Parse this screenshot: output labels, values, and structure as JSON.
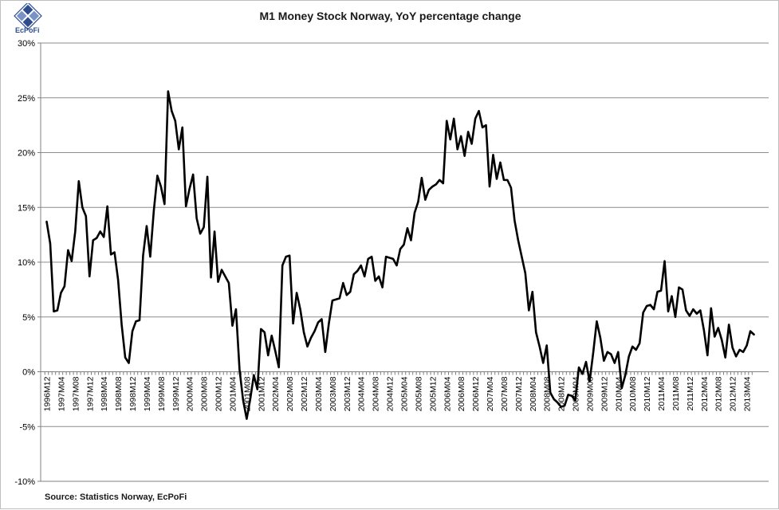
{
  "logo": {
    "name": "EcPoFi"
  },
  "chart_data": {
    "type": "line",
    "title": "M1 Money Stock Norway, YoY percentage change",
    "source": "Source: Statistics Norway, EcPoFi",
    "xlabel": "",
    "ylabel": "",
    "ylim": [
      -10,
      30
    ],
    "yticks": [
      30,
      25,
      20,
      15,
      10,
      5,
      0,
      -5,
      -10
    ],
    "ytick_labels": [
      "30%",
      "25%",
      "20%",
      "15%",
      "10%",
      "5%",
      "0%",
      "-5%",
      "-10%"
    ],
    "grid": true,
    "x_start": "1996M12",
    "xtick_labels": [
      "1996M12",
      "1997M04",
      "1997M08",
      "1997M12",
      "1998M04",
      "1998M08",
      "1998M12",
      "1999M04",
      "1999M08",
      "1999M12",
      "2000M04",
      "2000M08",
      "2000M12",
      "2001M04",
      "2001M08",
      "2001M12",
      "2002M04",
      "2002M08",
      "2002M12",
      "2003M04",
      "2003M08",
      "2003M12",
      "2004M04",
      "2004M08",
      "2004M12",
      "2005M04",
      "2005M08",
      "2005M12",
      "2006M04",
      "2006M08",
      "2006M12",
      "2007M04",
      "2007M08",
      "2007M12",
      "2008M04",
      "2008M08",
      "2008M12",
      "2009M04",
      "2009M08",
      "2009M12",
      "2010M04",
      "2010M08",
      "2010M12",
      "2011M04",
      "2011M08",
      "2011M12",
      "2012M04",
      "2012M08",
      "2012M12",
      "2013M04"
    ],
    "series": [
      {
        "name": "M1 YoY %",
        "color": "#000000",
        "values": [
          13.7,
          11.7,
          5.5,
          5.6,
          7.2,
          7.8,
          11.1,
          10.1,
          12.8,
          17.4,
          15.0,
          14.2,
          8.7,
          12.0,
          12.2,
          12.8,
          12.3,
          15.1,
          10.7,
          10.9,
          8.4,
          4.3,
          1.3,
          0.8,
          3.7,
          4.6,
          4.7,
          10.6,
          13.3,
          10.5,
          14.7,
          17.9,
          16.9,
          15.3,
          25.6,
          23.8,
          22.9,
          20.3,
          22.3,
          15.1,
          16.7,
          18.0,
          14.0,
          12.6,
          13.2,
          17.8,
          8.6,
          12.8,
          8.2,
          9.3,
          8.7,
          8.1,
          4.2,
          5.7,
          0.2,
          -2.6,
          -4.3,
          -2.5,
          -0.3,
          -1.6,
          3.9,
          3.6,
          1.5,
          3.3,
          1.9,
          0.4,
          9.7,
          10.5,
          10.6,
          4.4,
          7.2,
          5.7,
          3.6,
          2.3,
          3.1,
          3.7,
          4.5,
          4.8,
          1.8,
          4.4,
          6.5,
          6.6,
          6.7,
          8.1,
          7.0,
          7.3,
          8.9,
          9.2,
          9.7,
          8.7,
          10.3,
          10.5,
          8.3,
          8.7,
          7.7,
          10.5,
          10.4,
          10.3,
          9.7,
          11.2,
          11.6,
          13.1,
          12.0,
          14.5,
          15.5,
          17.7,
          15.7,
          16.6,
          16.9,
          17.1,
          17.5,
          17.2,
          22.9,
          21.2,
          23.1,
          20.3,
          21.5,
          19.7,
          21.9,
          20.8,
          23.1,
          23.8,
          22.3,
          22.5,
          16.9,
          19.8,
          17.6,
          19.1,
          17.5,
          17.5,
          16.8,
          13.8,
          12.0,
          10.5,
          9.0,
          5.6,
          7.3,
          3.6,
          2.3,
          0.8,
          2.4,
          -1.9,
          -2.5,
          -2.8,
          -3.2,
          -3.1,
          -2.1,
          -2.2,
          -2.6,
          0.4,
          -0.2,
          0.9,
          -0.9,
          1.7,
          4.6,
          3.1,
          1.0,
          1.8,
          1.6,
          0.8,
          1.8,
          -1.5,
          -0.3,
          1.4,
          2.3,
          2.0,
          2.6,
          5.4,
          6.0,
          6.1,
          5.7,
          7.3,
          7.4,
          10.1,
          5.5,
          6.9,
          5.0,
          7.7,
          7.5,
          5.6,
          5.1,
          5.7,
          5.3,
          5.6,
          3.8,
          1.5,
          5.8,
          3.2,
          4.0,
          2.9,
          1.3,
          4.3,
          2.2,
          1.4,
          2.0,
          1.8,
          2.4,
          3.7,
          3.4
        ]
      }
    ]
  }
}
